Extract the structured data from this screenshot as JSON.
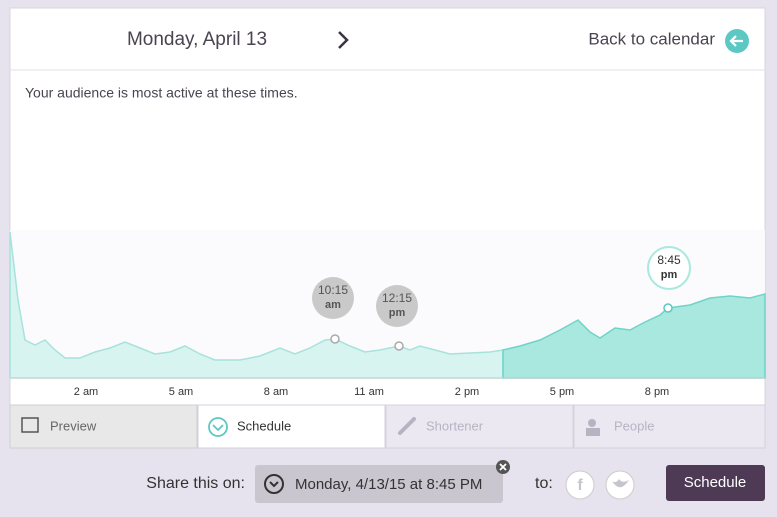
{
  "header": {
    "title": "Monday, April 13",
    "back_link": "Back to calendar"
  },
  "intro": "Your audience is most active at these times.",
  "chart": {
    "time_labels": [
      "2 am",
      "5 am",
      "8 am",
      "11 am",
      "2 pm",
      "5 pm",
      "8 pm"
    ],
    "peaks": [
      {
        "time": "10:15",
        "period": "am"
      },
      {
        "time": "12:15",
        "period": "pm"
      },
      {
        "time": "8:45",
        "period": "pm"
      }
    ]
  },
  "tabs": [
    "Preview",
    "Schedule",
    "Shortener",
    "People"
  ],
  "share": {
    "label": "Share this on:",
    "datetime": "Monday, 4/13/15 at 8:45 PM",
    "to": "to:",
    "button": "Schedule"
  }
}
